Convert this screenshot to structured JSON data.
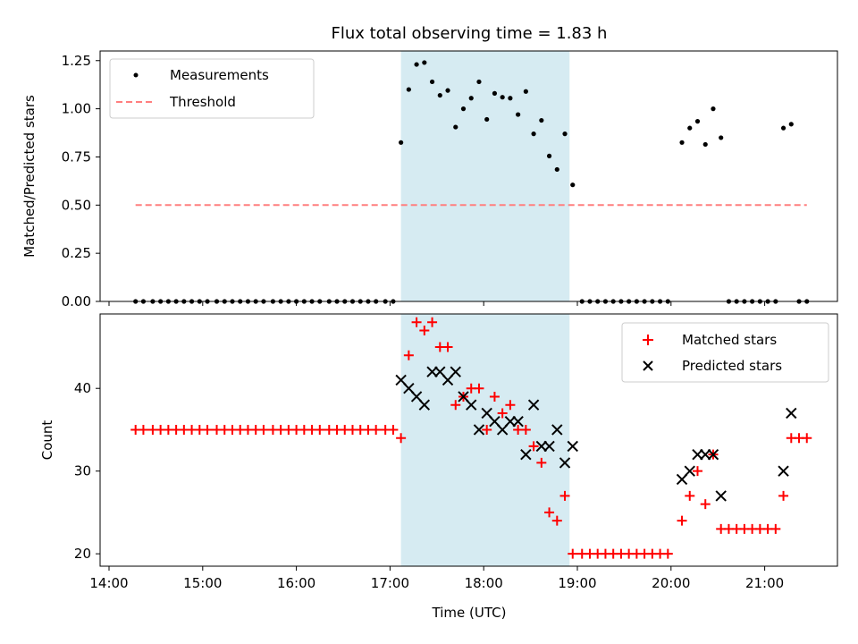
{
  "figure": {
    "title": "Flux total observing time = 1.83 h",
    "highlight_color": "#add8e6",
    "highlight_span": [
      "17:07",
      "18:55"
    ]
  },
  "chart_data": [
    {
      "type": "scatter",
      "panel": "top",
      "ylabel": "Matched/Predicted stars",
      "ylim": [
        0,
        1.3
      ],
      "yticks": [
        "0.00",
        "0.25",
        "0.50",
        "0.75",
        "1.00",
        "1.25"
      ],
      "grid": false,
      "legend_position": "top-left",
      "series": [
        {
          "name": "Measurements",
          "color": "#000000",
          "marker": "dot",
          "points": [
            [
              "14:17",
              0
            ],
            [
              "14:22",
              0
            ],
            [
              "14:28",
              0
            ],
            [
              "14:33",
              0
            ],
            [
              "14:38",
              0
            ],
            [
              "14:43",
              0
            ],
            [
              "14:48",
              0
            ],
            [
              "14:53",
              0
            ],
            [
              "14:58",
              0
            ],
            [
              "15:03",
              0
            ],
            [
              "15:09",
              0
            ],
            [
              "15:14",
              0
            ],
            [
              "15:19",
              0
            ],
            [
              "15:24",
              0
            ],
            [
              "15:29",
              0
            ],
            [
              "15:34",
              0
            ],
            [
              "15:39",
              0
            ],
            [
              "15:45",
              0
            ],
            [
              "15:50",
              0
            ],
            [
              "15:55",
              0
            ],
            [
              "16:00",
              0
            ],
            [
              "16:05",
              0
            ],
            [
              "16:10",
              0
            ],
            [
              "16:15",
              0
            ],
            [
              "16:21",
              0
            ],
            [
              "16:26",
              0
            ],
            [
              "16:31",
              0
            ],
            [
              "16:36",
              0
            ],
            [
              "16:41",
              0
            ],
            [
              "16:46",
              0
            ],
            [
              "16:51",
              0
            ],
            [
              "16:57",
              0
            ],
            [
              "17:02",
              0
            ],
            [
              "17:07",
              0.825
            ],
            [
              "17:12",
              1.1
            ],
            [
              "17:17",
              1.23
            ],
            [
              "17:22",
              1.24
            ],
            [
              "17:27",
              1.14
            ],
            [
              "17:32",
              1.07
            ],
            [
              "17:37",
              1.095
            ],
            [
              "17:42",
              0.905
            ],
            [
              "17:47",
              1.0
            ],
            [
              "17:52",
              1.055
            ],
            [
              "17:57",
              1.14
            ],
            [
              "18:02",
              0.945
            ],
            [
              "18:07",
              1.08
            ],
            [
              "18:12",
              1.06
            ],
            [
              "18:17",
              1.055
            ],
            [
              "18:22",
              0.97
            ],
            [
              "18:27",
              1.09
            ],
            [
              "18:32",
              0.87
            ],
            [
              "18:37",
              0.94
            ],
            [
              "18:42",
              0.755
            ],
            [
              "18:47",
              0.685
            ],
            [
              "18:52",
              0.87
            ],
            [
              "18:57",
              0.605
            ],
            [
              "19:03",
              0
            ],
            [
              "19:08",
              0
            ],
            [
              "19:13",
              0
            ],
            [
              "19:18",
              0
            ],
            [
              "19:23",
              0
            ],
            [
              "19:28",
              0
            ],
            [
              "19:33",
              0
            ],
            [
              "19:38",
              0
            ],
            [
              "19:43",
              0
            ],
            [
              "19:48",
              0
            ],
            [
              "19:53",
              0
            ],
            [
              "19:58",
              0
            ],
            [
              "20:07",
              0.825
            ],
            [
              "20:12",
              0.9
            ],
            [
              "20:17",
              0.935
            ],
            [
              "20:22",
              0.815
            ],
            [
              "20:27",
              1.0
            ],
            [
              "20:32",
              0.85
            ],
            [
              "20:37",
              0
            ],
            [
              "20:42",
              0
            ],
            [
              "20:47",
              0
            ],
            [
              "20:52",
              0
            ],
            [
              "20:57",
              0
            ],
            [
              "21:02",
              0
            ],
            [
              "21:07",
              0
            ],
            [
              "21:12",
              0.9
            ],
            [
              "21:17",
              0.92
            ],
            [
              "21:22",
              0
            ],
            [
              "21:27",
              0
            ]
          ]
        },
        {
          "name": "Threshold",
          "color": "#ff7f7f",
          "style": "dashed",
          "points": [
            [
              "14:17",
              0.5
            ],
            [
              "21:27",
              0.5
            ]
          ]
        }
      ]
    },
    {
      "type": "scatter",
      "panel": "bottom",
      "xlabel": "Time (UTC)",
      "ylabel": "Count",
      "xticks": [
        "14:00",
        "15:00",
        "16:00",
        "17:00",
        "18:00",
        "19:00",
        "20:00",
        "21:00"
      ],
      "yticks": [
        "20",
        "30",
        "40"
      ],
      "ylim": [
        18.5,
        49
      ],
      "grid": false,
      "legend_position": "top-right",
      "series": [
        {
          "name": "Matched stars",
          "color": "#ff0000",
          "marker": "plus",
          "points": [
            [
              "14:17",
              35
            ],
            [
              "14:22",
              35
            ],
            [
              "14:28",
              35
            ],
            [
              "14:33",
              35
            ],
            [
              "14:38",
              35
            ],
            [
              "14:43",
              35
            ],
            [
              "14:48",
              35
            ],
            [
              "14:53",
              35
            ],
            [
              "14:58",
              35
            ],
            [
              "15:03",
              35
            ],
            [
              "15:09",
              35
            ],
            [
              "15:14",
              35
            ],
            [
              "15:19",
              35
            ],
            [
              "15:24",
              35
            ],
            [
              "15:29",
              35
            ],
            [
              "15:34",
              35
            ],
            [
              "15:39",
              35
            ],
            [
              "15:45",
              35
            ],
            [
              "15:50",
              35
            ],
            [
              "15:55",
              35
            ],
            [
              "16:00",
              35
            ],
            [
              "16:05",
              35
            ],
            [
              "16:10",
              35
            ],
            [
              "16:15",
              35
            ],
            [
              "16:21",
              35
            ],
            [
              "16:26",
              35
            ],
            [
              "16:31",
              35
            ],
            [
              "16:36",
              35
            ],
            [
              "16:41",
              35
            ],
            [
              "16:46",
              35
            ],
            [
              "16:51",
              35
            ],
            [
              "16:57",
              35
            ],
            [
              "17:02",
              35
            ],
            [
              "17:07",
              34
            ],
            [
              "17:12",
              44
            ],
            [
              "17:17",
              48
            ],
            [
              "17:22",
              47
            ],
            [
              "17:27",
              48
            ],
            [
              "17:32",
              45
            ],
            [
              "17:37",
              45
            ],
            [
              "17:42",
              38
            ],
            [
              "17:47",
              39
            ],
            [
              "17:52",
              40
            ],
            [
              "17:57",
              40
            ],
            [
              "18:02",
              35
            ],
            [
              "18:07",
              39
            ],
            [
              "18:12",
              37
            ],
            [
              "18:17",
              38
            ],
            [
              "18:22",
              35
            ],
            [
              "18:27",
              35
            ],
            [
              "18:32",
              33
            ],
            [
              "18:37",
              31
            ],
            [
              "18:42",
              25
            ],
            [
              "18:47",
              24
            ],
            [
              "18:52",
              27
            ],
            [
              "18:57",
              20
            ],
            [
              "19:03",
              20
            ],
            [
              "19:08",
              20
            ],
            [
              "19:13",
              20
            ],
            [
              "19:18",
              20
            ],
            [
              "19:23",
              20
            ],
            [
              "19:28",
              20
            ],
            [
              "19:33",
              20
            ],
            [
              "19:38",
              20
            ],
            [
              "19:43",
              20
            ],
            [
              "19:48",
              20
            ],
            [
              "19:53",
              20
            ],
            [
              "19:58",
              20
            ],
            [
              "20:07",
              24
            ],
            [
              "20:12",
              27
            ],
            [
              "20:17",
              30
            ],
            [
              "20:22",
              26
            ],
            [
              "20:27",
              32
            ],
            [
              "20:32",
              23
            ],
            [
              "20:37",
              23
            ],
            [
              "20:42",
              23
            ],
            [
              "20:47",
              23
            ],
            [
              "20:52",
              23
            ],
            [
              "20:57",
              23
            ],
            [
              "21:02",
              23
            ],
            [
              "21:07",
              23
            ],
            [
              "21:12",
              27
            ],
            [
              "21:17",
              34
            ],
            [
              "21:22",
              34
            ],
            [
              "21:27",
              34
            ]
          ]
        },
        {
          "name": "Predicted stars",
          "color": "#000000",
          "marker": "x",
          "points": [
            [
              "17:07",
              41
            ],
            [
              "17:12",
              40
            ],
            [
              "17:17",
              39
            ],
            [
              "17:22",
              38
            ],
            [
              "17:27",
              42
            ],
            [
              "17:32",
              42
            ],
            [
              "17:37",
              41
            ],
            [
              "17:42",
              42
            ],
            [
              "17:47",
              39
            ],
            [
              "17:52",
              38
            ],
            [
              "17:57",
              35
            ],
            [
              "18:02",
              37
            ],
            [
              "18:07",
              36
            ],
            [
              "18:12",
              35
            ],
            [
              "18:17",
              36
            ],
            [
              "18:22",
              36
            ],
            [
              "18:27",
              32
            ],
            [
              "18:32",
              38
            ],
            [
              "18:37",
              33
            ],
            [
              "18:42",
              33
            ],
            [
              "18:47",
              35
            ],
            [
              "18:52",
              31
            ],
            [
              "18:57",
              33
            ],
            [
              "20:07",
              29
            ],
            [
              "20:12",
              30
            ],
            [
              "20:17",
              32
            ],
            [
              "20:22",
              32
            ],
            [
              "20:27",
              32
            ],
            [
              "20:32",
              27
            ],
            [
              "21:12",
              30
            ],
            [
              "21:17",
              37
            ]
          ]
        }
      ]
    }
  ]
}
